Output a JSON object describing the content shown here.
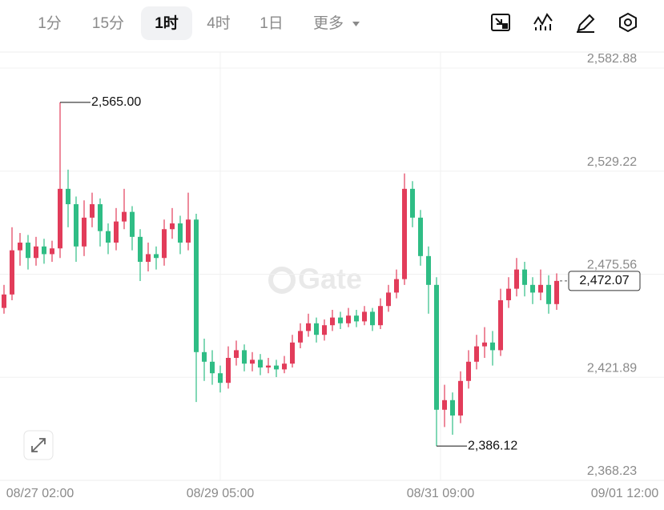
{
  "toolbar": {
    "tabs": [
      "1分",
      "15分",
      "1时",
      "4时",
      "1日"
    ],
    "selected": 2,
    "more": "更多"
  },
  "watermark": "Gate",
  "chart_data": {
    "type": "candlestick",
    "up_color": "#e23c5a",
    "down_color": "#2fbd85",
    "open": [
      2458,
      2465,
      2488,
      2492,
      2484,
      2490,
      2486,
      2489,
      2520,
      2512,
      2490,
      2505,
      2512,
      2498,
      2492,
      2503,
      2508,
      2495,
      2482,
      2486,
      2484,
      2499,
      2502,
      2492,
      2504,
      2435,
      2430,
      2424,
      2419,
      2432,
      2436,
      2429,
      2431,
      2427,
      2428,
      2426,
      2429,
      2440,
      2446,
      2450,
      2444,
      2449,
      2453,
      2450,
      2454,
      2451,
      2456,
      2449,
      2459,
      2466,
      2473,
      2520,
      2505,
      2485,
      2470,
      2405,
      2410,
      2402,
      2420,
      2430,
      2438,
      2440,
      2436,
      2462,
      2468,
      2478,
      2470,
      2466,
      2470,
      2460
    ],
    "high": [
      2470,
      2500,
      2497,
      2496,
      2495,
      2494,
      2493,
      2565,
      2530,
      2516,
      2514,
      2518,
      2515,
      2502,
      2510,
      2520,
      2511,
      2499,
      2492,
      2490,
      2504,
      2510,
      2506,
      2518,
      2507,
      2442,
      2436,
      2428,
      2438,
      2441,
      2439,
      2435,
      2434,
      2432,
      2431,
      2433,
      2444,
      2450,
      2455,
      2453,
      2452,
      2457,
      2456,
      2458,
      2457,
      2459,
      2458,
      2463,
      2470,
      2478,
      2528,
      2524,
      2509,
      2490,
      2474,
      2418,
      2414,
      2425,
      2436,
      2444,
      2448,
      2446,
      2468,
      2474,
      2484,
      2482,
      2474,
      2478,
      2475,
      2476
    ],
    "low": [
      2455,
      2462,
      2480,
      2478,
      2480,
      2481,
      2482,
      2484,
      2500,
      2482,
      2485,
      2500,
      2490,
      2486,
      2488,
      2499,
      2488,
      2472,
      2477,
      2478,
      2480,
      2494,
      2486,
      2488,
      2409,
      2420,
      2418,
      2414,
      2416,
      2428,
      2425,
      2425,
      2423,
      2424,
      2422,
      2424,
      2427,
      2437,
      2443,
      2440,
      2441,
      2446,
      2447,
      2448,
      2448,
      2449,
      2446,
      2447,
      2456,
      2463,
      2470,
      2500,
      2480,
      2455,
      2386.12,
      2396,
      2392,
      2398,
      2416,
      2426,
      2432,
      2428,
      2433,
      2458,
      2464,
      2464,
      2460,
      2462,
      2455,
      2457
    ],
    "close": [
      2465,
      2488,
      2492,
      2484,
      2490,
      2486,
      2489,
      2520,
      2512,
      2490,
      2505,
      2512,
      2498,
      2492,
      2503,
      2508,
      2495,
      2482,
      2486,
      2484,
      2499,
      2502,
      2492,
      2504,
      2435,
      2430,
      2424,
      2419,
      2432,
      2436,
      2429,
      2431,
      2427,
      2428,
      2426,
      2429,
      2440,
      2446,
      2450,
      2444,
      2449,
      2453,
      2450,
      2454,
      2451,
      2456,
      2449,
      2459,
      2466,
      2473,
      2520,
      2505,
      2485,
      2470,
      2405,
      2410,
      2402,
      2420,
      2430,
      2438,
      2440,
      2436,
      2462,
      2468,
      2478,
      2470,
      2466,
      2470,
      2460,
      2472.07
    ],
    "ylim": [
      2368.23,
      2591.21
    ],
    "yticks": [
      {
        "value": 2582.88,
        "label": "2,582.88"
      },
      {
        "value": 2529.22,
        "label": "2,529.22"
      },
      {
        "value": 2475.56,
        "label": "2,475.56"
      },
      {
        "value": 2421.89,
        "label": "2,421.89"
      },
      {
        "value": 2368.23,
        "label": "2,368.23"
      }
    ],
    "x_labels": [
      "08/27 02:00",
      "08/29 05:00",
      "08/31 09:00",
      "09/01 12:00"
    ],
    "annotations": [
      {
        "value": 2565,
        "label": "2,565.00"
      },
      {
        "value": 2386.12,
        "label": "2,386.12"
      }
    ],
    "last_price": {
      "value": 2472.07,
      "label": "2,472.07"
    },
    "grid": true
  }
}
